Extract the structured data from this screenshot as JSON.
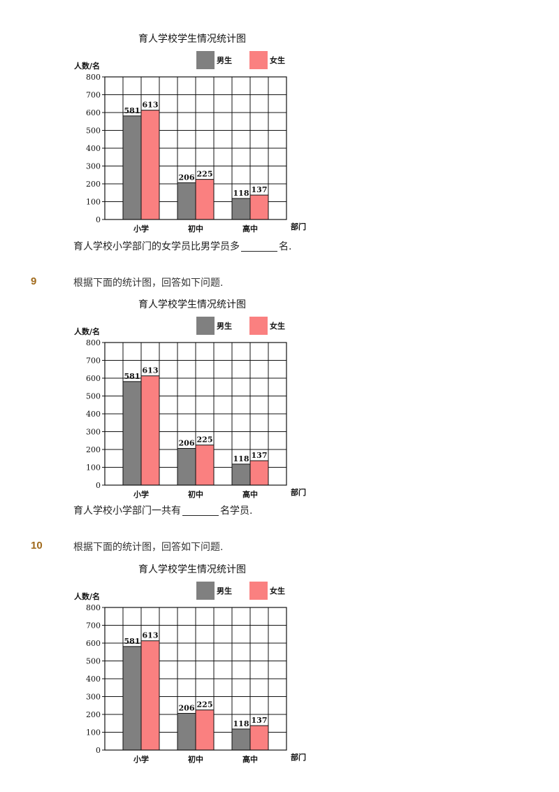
{
  "chart_data": [
    {
      "type": "bar",
      "title": "育人学校学生情况统计图",
      "ylabel": "人数/名",
      "xlabel": "部门",
      "categories": [
        "小学",
        "初中",
        "高中"
      ],
      "series": [
        {
          "name": "男生",
          "values": [
            581,
            206,
            118
          ],
          "color": "#808080"
        },
        {
          "name": "女生",
          "values": [
            613,
            225,
            137
          ],
          "color": "#fa8080"
        }
      ],
      "ylim": [
        0,
        800
      ],
      "yticks": [
        0,
        100,
        200,
        300,
        400,
        500,
        600,
        700,
        800
      ],
      "grid": true,
      "legend": "top-right"
    },
    {
      "type": "bar",
      "title": "育人学校学生情况统计图",
      "ylabel": "人数/名",
      "xlabel": "部门",
      "categories": [
        "小学",
        "初中",
        "高中"
      ],
      "series": [
        {
          "name": "男生",
          "values": [
            581,
            206,
            118
          ],
          "color": "#808080"
        },
        {
          "name": "女生",
          "values": [
            613,
            225,
            137
          ],
          "color": "#fa8080"
        }
      ],
      "ylim": [
        0,
        800
      ],
      "yticks": [
        0,
        100,
        200,
        300,
        400,
        500,
        600,
        700,
        800
      ],
      "grid": true,
      "legend": "top-right"
    },
    {
      "type": "bar",
      "title": "育人学校学生情况统计图",
      "ylabel": "人数/名",
      "xlabel": "部门",
      "categories": [
        "小学",
        "初中",
        "高中"
      ],
      "series": [
        {
          "name": "男生",
          "values": [
            581,
            206,
            118
          ],
          "color": "#808080"
        },
        {
          "name": "女生",
          "values": [
            613,
            225,
            137
          ],
          "color": "#fa8080"
        }
      ],
      "ylim": [
        0,
        800
      ],
      "yticks": [
        0,
        100,
        200,
        300,
        400,
        500,
        600,
        700,
        800
      ],
      "grid": true,
      "legend": "top-right"
    }
  ],
  "q8": {
    "question_before": "育人学校小学部门的女学员比男学员多",
    "question_after": "名."
  },
  "q9": {
    "number": "9",
    "prompt": "根据下面的统计图，回答如下问题.",
    "question_before": "育人学校小学部门一共有",
    "question_after": "名学员."
  },
  "q10": {
    "number": "10",
    "prompt": "根据下面的统计图，回答如下问题."
  }
}
